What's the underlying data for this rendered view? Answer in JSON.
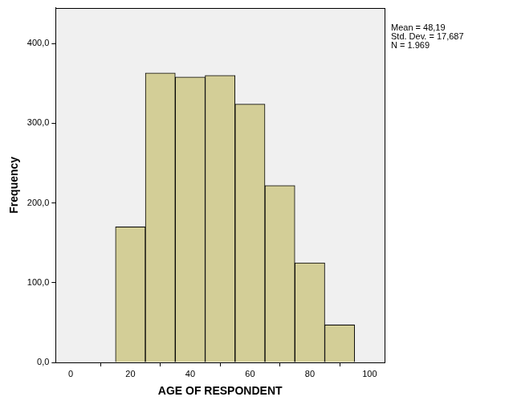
{
  "chart_data": {
    "type": "histogram",
    "x_label": "AGE OF RESPONDENT",
    "y_label": "Frequency",
    "annotations": [
      "Mean = 48,19",
      "Std. Dev. = 17,687",
      "N = 1.969"
    ],
    "bins": [
      15,
      25,
      35,
      45,
      55,
      65,
      75,
      85,
      95
    ],
    "values": [
      170,
      363,
      358,
      360,
      324,
      222,
      125,
      47
    ],
    "color": "#d3ce97",
    "xlim": [
      -5,
      105
    ],
    "xticks": [
      0,
      20,
      40,
      60,
      80,
      100
    ],
    "ylim": [
      0,
      445
    ],
    "yticks": [
      {
        "value": 0,
        "label": "0,0"
      },
      {
        "value": 100,
        "label": "100,0"
      },
      {
        "value": 200,
        "label": "200,0"
      },
      {
        "value": 300,
        "label": "300,0"
      },
      {
        "value": 400,
        "label": "400,0"
      }
    ],
    "grid": false,
    "legend": false
  }
}
